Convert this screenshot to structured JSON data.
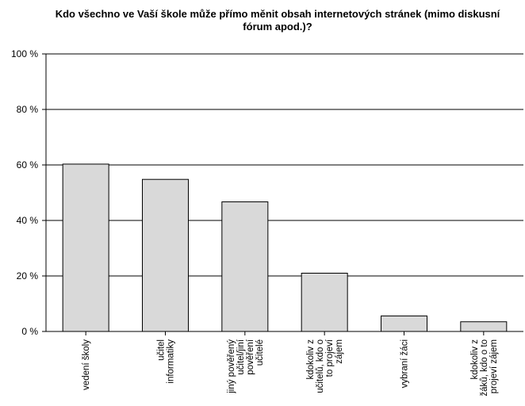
{
  "chart_data": {
    "type": "bar",
    "title": "Kdo všechno ve Vaší škole může přímo měnit obsah internetových stránek (mimo diskusní fórum apod.)?",
    "categories": [
      [
        "vedení školy"
      ],
      [
        "učitel",
        "informatiky"
      ],
      [
        "jiný pověřený",
        "učitel/jiní",
        "pověření",
        "učitelé"
      ],
      [
        "kdokoliv z",
        "učitelů, kdo o",
        "to projeví",
        "zájem"
      ],
      [
        "vybraní žáci"
      ],
      [
        "kdokoliv z",
        "žáků, kdo o to",
        "projeví zájem"
      ]
    ],
    "values": [
      60.3,
      54.8,
      46.7,
      21.0,
      5.6,
      3.5
    ],
    "ylim": [
      0,
      100
    ],
    "yticks": [
      "0 %",
      "20 %",
      "40 %",
      "60 %",
      "80 %",
      "100 %"
    ],
    "ytick_values": [
      0,
      20,
      40,
      60,
      80,
      100
    ],
    "grid": true,
    "bar_color": "#d9d9d9",
    "bar_edge_color": "#000000"
  }
}
